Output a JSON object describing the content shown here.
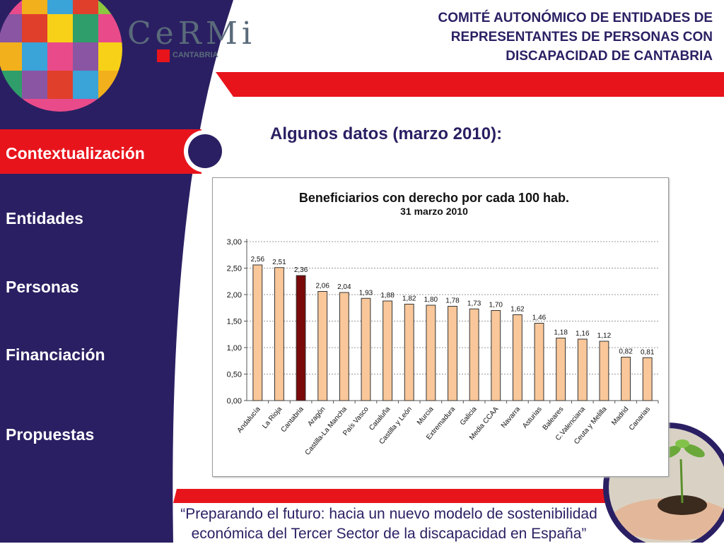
{
  "header": {
    "title_lines": [
      "COMITÉ AUTONÓMICO DE ENTIDADES DE",
      "REPRESENTANTES DE PERSONAS CON",
      "DISCAPACIDAD DE CANTABRIA"
    ],
    "logo_text": "CeRMi",
    "logo_subtext": "CANTABRIA"
  },
  "sidebar": {
    "items": [
      {
        "label": "Contextualización",
        "active": true
      },
      {
        "label": "Entidades",
        "active": false
      },
      {
        "label": "Personas",
        "active": false
      },
      {
        "label": "Financiación",
        "active": false
      },
      {
        "label": "Propuestas",
        "active": false
      }
    ]
  },
  "main": {
    "title": "Algunos datos (marzo 2010):"
  },
  "footer": {
    "lines": [
      "“Preparando el futuro: hacia un nuevo modelo de sostenibilidad",
      "económica del Tercer Sector de la discapacidad en España”"
    ]
  },
  "colors": {
    "navy": "#2b1f63",
    "red": "#e8141c",
    "bar": "#f9c79a",
    "bar_highlight": "#7a0a0a"
  },
  "chart_data": {
    "type": "bar",
    "title": "Beneficiarios con derecho por cada 100 hab.",
    "subtitle": "31 marzo 2010",
    "categories": [
      "Andalucía",
      "La Rioja",
      "Cantabria",
      "Aragón",
      "Castilla-La Mancha",
      "País Vasco",
      "Cataluña",
      "Castilla y León",
      "Murcia",
      "Extremadura",
      "Galicia",
      "Media CCAA",
      "Navarra",
      "Asturias",
      "Baleares",
      "C.Valenciana",
      "Ceuta y Melilla",
      "Madrid",
      "Canarias"
    ],
    "values": [
      2.56,
      2.51,
      2.36,
      2.06,
      2.04,
      1.93,
      1.88,
      1.82,
      1.8,
      1.78,
      1.73,
      1.7,
      1.62,
      1.46,
      1.18,
      1.16,
      1.12,
      0.82,
      0.81
    ],
    "data_labels": [
      "2,56",
      "2,51",
      "2,36",
      "2,06",
      "2,04",
      "1,93",
      "1,88",
      "1,82",
      "1,80",
      "1,78",
      "1,73",
      "1,70",
      "1,62",
      "1,46",
      "1,18",
      "1,16",
      "1,12",
      "0,82",
      "0,81"
    ],
    "highlight": "Cantabria",
    "ylim": [
      0,
      3
    ],
    "yticks": [
      "0,00",
      "0,50",
      "1,00",
      "1,50",
      "2,00",
      "2,50",
      "3,00"
    ],
    "grid": true
  }
}
